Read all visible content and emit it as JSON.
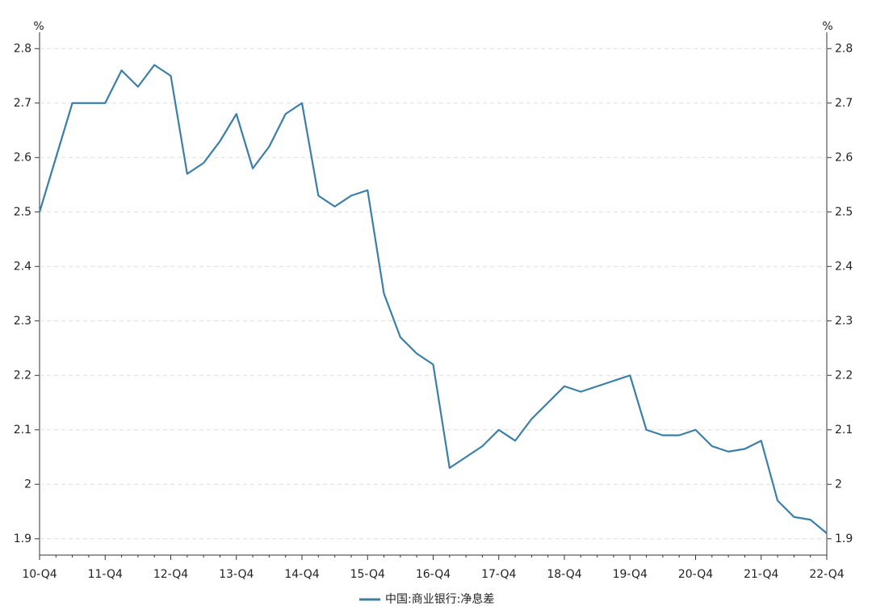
{
  "chart_data": {
    "type": "line",
    "y_label": "%",
    "y2_label": "%",
    "categories": [
      "10-Q4",
      null,
      null,
      null,
      "11-Q4",
      null,
      null,
      null,
      "12-Q4",
      null,
      null,
      null,
      "13-Q4",
      null,
      null,
      null,
      "14-Q4",
      null,
      null,
      null,
      "15-Q4",
      null,
      null,
      null,
      "16-Q4",
      null,
      null,
      null,
      "17-Q4",
      null,
      null,
      null,
      "18-Q4",
      null,
      null,
      null,
      "19-Q4",
      null,
      null,
      null,
      "20-Q4",
      null,
      null,
      null,
      "21-Q4",
      null,
      null,
      null,
      "22-Q4"
    ],
    "series": [
      {
        "name": "中国:商业银行:净息差",
        "color": "#3a7fa6",
        "values": [
          2.5,
          2.6,
          2.7,
          2.7,
          2.7,
          2.76,
          2.73,
          2.77,
          2.75,
          2.57,
          2.59,
          2.63,
          2.68,
          2.58,
          2.62,
          2.68,
          2.7,
          2.53,
          2.51,
          2.53,
          2.54,
          2.35,
          2.27,
          2.24,
          2.22,
          2.03,
          2.05,
          2.07,
          2.1,
          2.08,
          2.12,
          2.15,
          2.18,
          2.17,
          2.18,
          2.19,
          2.2,
          2.1,
          2.09,
          2.09,
          2.1,
          2.07,
          2.06,
          2.065,
          2.08,
          1.97,
          1.94,
          1.935,
          1.91
        ]
      }
    ],
    "ylim": [
      1.87,
      2.83
    ],
    "yticks": [
      1.9,
      2,
      2.1,
      2.2,
      2.3,
      2.4,
      2.5,
      2.6,
      2.7,
      2.8
    ],
    "grid": true,
    "legend": "bottom"
  }
}
